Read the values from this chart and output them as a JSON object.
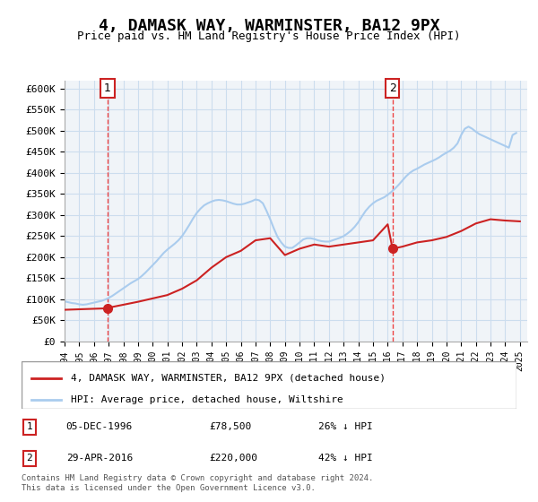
{
  "title": "4, DAMASK WAY, WARMINSTER, BA12 9PX",
  "subtitle": "Price paid vs. HM Land Registry's House Price Index (HPI)",
  "title_fontsize": 13,
  "subtitle_fontsize": 10,
  "xlim": [
    1994.0,
    2025.5
  ],
  "ylim": [
    0,
    620000
  ],
  "yticks": [
    0,
    50000,
    100000,
    150000,
    200000,
    250000,
    300000,
    350000,
    400000,
    450000,
    500000,
    550000,
    600000
  ],
  "ytick_labels": [
    "£0",
    "£50K",
    "£100K",
    "£150K",
    "£200K",
    "£250K",
    "£300K",
    "£350K",
    "£400K",
    "£450K",
    "£500K",
    "£550K",
    "£600K"
  ],
  "xticks": [
    1994,
    1995,
    1996,
    1997,
    1998,
    1999,
    2000,
    2001,
    2002,
    2003,
    2004,
    2005,
    2006,
    2007,
    2008,
    2009,
    2010,
    2011,
    2012,
    2013,
    2014,
    2015,
    2016,
    2017,
    2018,
    2019,
    2020,
    2021,
    2022,
    2023,
    2024,
    2025
  ],
  "grid_color": "#ccddee",
  "background_color": "#f0f4f8",
  "plot_bg_color": "#f0f4f8",
  "hpi_line_color": "#aaccee",
  "price_line_color": "#cc2222",
  "marker_color": "#cc2222",
  "dashed_line_color": "#ee4444",
  "legend_label_price": "4, DAMASK WAY, WARMINSTER, BA12 9PX (detached house)",
  "legend_label_hpi": "HPI: Average price, detached house, Wiltshire",
  "sale1_year": 1996.92,
  "sale1_price": 78500,
  "sale1_label": "1",
  "sale2_year": 2016.33,
  "sale2_price": 220000,
  "sale2_label": "2",
  "annotation1_date": "05-DEC-1996",
  "annotation1_price": "£78,500",
  "annotation1_hpi": "26% ↓ HPI",
  "annotation2_date": "29-APR-2016",
  "annotation2_price": "£220,000",
  "annotation2_hpi": "42% ↓ HPI",
  "copyright_text": "Contains HM Land Registry data © Crown copyright and database right 2024.\nThis data is licensed under the Open Government Licence v3.0.",
  "hpi_data_x": [
    1994.0,
    1994.25,
    1994.5,
    1994.75,
    1995.0,
    1995.25,
    1995.5,
    1995.75,
    1996.0,
    1996.25,
    1996.5,
    1996.75,
    1997.0,
    1997.25,
    1997.5,
    1997.75,
    1998.0,
    1998.25,
    1998.5,
    1998.75,
    1999.0,
    1999.25,
    1999.5,
    1999.75,
    2000.0,
    2000.25,
    2000.5,
    2000.75,
    2001.0,
    2001.25,
    2001.5,
    2001.75,
    2002.0,
    2002.25,
    2002.5,
    2002.75,
    2003.0,
    2003.25,
    2003.5,
    2003.75,
    2004.0,
    2004.25,
    2004.5,
    2004.75,
    2005.0,
    2005.25,
    2005.5,
    2005.75,
    2006.0,
    2006.25,
    2006.5,
    2006.75,
    2007.0,
    2007.25,
    2007.5,
    2007.75,
    2008.0,
    2008.25,
    2008.5,
    2008.75,
    2009.0,
    2009.25,
    2009.5,
    2009.75,
    2010.0,
    2010.25,
    2010.5,
    2010.75,
    2011.0,
    2011.25,
    2011.5,
    2011.75,
    2012.0,
    2012.25,
    2012.5,
    2012.75,
    2013.0,
    2013.25,
    2013.5,
    2013.75,
    2014.0,
    2014.25,
    2014.5,
    2014.75,
    2015.0,
    2015.25,
    2015.5,
    2015.75,
    2016.0,
    2016.25,
    2016.5,
    2016.75,
    2017.0,
    2017.25,
    2017.5,
    2017.75,
    2018.0,
    2018.25,
    2018.5,
    2018.75,
    2019.0,
    2019.25,
    2019.5,
    2019.75,
    2020.0,
    2020.25,
    2020.5,
    2020.75,
    2021.0,
    2021.25,
    2021.5,
    2021.75,
    2022.0,
    2022.25,
    2022.5,
    2022.75,
    2023.0,
    2023.25,
    2023.5,
    2023.75,
    2024.0,
    2024.25,
    2024.5,
    2024.75
  ],
  "hpi_data_y": [
    95000,
    93000,
    91000,
    90000,
    88000,
    87000,
    88000,
    90000,
    92000,
    94000,
    96000,
    99000,
    103000,
    108000,
    114000,
    120000,
    126000,
    132000,
    138000,
    143000,
    148000,
    155000,
    163000,
    172000,
    181000,
    190000,
    200000,
    210000,
    218000,
    225000,
    232000,
    240000,
    250000,
    263000,
    277000,
    292000,
    305000,
    315000,
    323000,
    328000,
    332000,
    335000,
    336000,
    335000,
    333000,
    330000,
    327000,
    325000,
    325000,
    327000,
    330000,
    333000,
    337000,
    335000,
    328000,
    310000,
    290000,
    268000,
    248000,
    235000,
    225000,
    222000,
    222000,
    228000,
    235000,
    242000,
    245000,
    245000,
    243000,
    240000,
    238000,
    237000,
    237000,
    240000,
    243000,
    246000,
    250000,
    256000,
    263000,
    272000,
    283000,
    297000,
    310000,
    320000,
    328000,
    334000,
    338000,
    342000,
    348000,
    355000,
    363000,
    372000,
    382000,
    392000,
    400000,
    406000,
    410000,
    415000,
    420000,
    424000,
    428000,
    432000,
    437000,
    443000,
    448000,
    453000,
    460000,
    470000,
    490000,
    505000,
    510000,
    505000,
    498000,
    492000,
    488000,
    484000,
    480000,
    476000,
    472000,
    468000,
    464000,
    460000,
    490000,
    495000
  ],
  "price_data_x": [
    1994.0,
    1996.92,
    1997.0,
    1998.0,
    1999.0,
    2000.0,
    2001.0,
    2002.0,
    2003.0,
    2004.0,
    2005.0,
    2006.0,
    2007.0,
    2008.0,
    2009.0,
    2010.0,
    2011.0,
    2012.0,
    2013.0,
    2014.0,
    2015.0,
    2016.0,
    2016.33,
    2017.0,
    2018.0,
    2019.0,
    2020.0,
    2021.0,
    2022.0,
    2023.0,
    2024.0,
    2025.0
  ],
  "price_data_y": [
    75000,
    78500,
    80000,
    87000,
    94000,
    102000,
    110000,
    125000,
    145000,
    175000,
    200000,
    215000,
    240000,
    245000,
    205000,
    220000,
    230000,
    225000,
    230000,
    235000,
    240000,
    278000,
    220000,
    225000,
    235000,
    240000,
    248000,
    262000,
    280000,
    290000,
    287000,
    285000
  ]
}
